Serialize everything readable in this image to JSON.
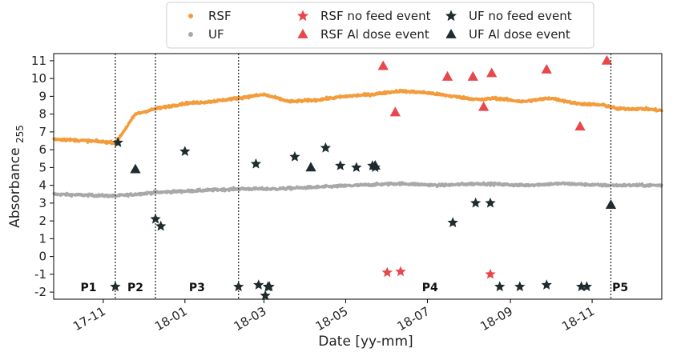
{
  "chart_data": {
    "type": "scatter",
    "xlabel": "Date [yy-mm]",
    "ylabel": "Absorbance 255",
    "ylim": [
      -2.4,
      11.4
    ],
    "y_ticks": [
      -2,
      -1,
      0,
      1,
      2,
      3,
      4,
      5,
      6,
      7,
      8,
      9,
      10,
      11
    ],
    "x_ticks": [
      "17-11",
      "18-01",
      "18-03",
      "18-05",
      "18-07",
      "18-09",
      "18-11"
    ],
    "xlim": [
      "2017-09-25",
      "2018-12-23"
    ],
    "grid": false,
    "legend": {
      "placement": "top-center",
      "entries": [
        {
          "label": "RSF",
          "marker": "dot",
          "color": "#f39c3c"
        },
        {
          "label": "UF",
          "marker": "dot",
          "color": "#a8a8a8"
        },
        {
          "label": "RSF no feed event",
          "marker": "star",
          "color": "#e8474b"
        },
        {
          "label": "RSF Al dose event",
          "marker": "triangle",
          "color": "#e8474b"
        },
        {
          "label": "UF no feed event",
          "marker": "star",
          "color": "#1f2b2e"
        },
        {
          "label": "UF Al dose event",
          "marker": "triangle",
          "color": "#1f2b2e"
        }
      ]
    },
    "phase_boundaries": [
      "2017-11-10",
      "2017-12-10",
      "2018-02-10",
      "2018-11-15"
    ],
    "phase_labels": [
      {
        "label": "P1",
        "x": "2017-10-21"
      },
      {
        "label": "P2",
        "x": "2017-11-25"
      },
      {
        "label": "P3",
        "x": "2018-01-10"
      },
      {
        "label": "P4",
        "x": "2018-07-03"
      },
      {
        "label": "P5",
        "x": "2018-11-22"
      }
    ],
    "series": [
      {
        "name": "RSF",
        "color": "#f39c3c",
        "type": "timeseries",
        "x": [
          "2017-09-25",
          "2017-10-20",
          "2017-11-10",
          "2017-11-15",
          "2017-11-25",
          "2017-12-10",
          "2018-01-01",
          "2018-01-20",
          "2018-02-10",
          "2018-03-01",
          "2018-03-20",
          "2018-04-10",
          "2018-05-01",
          "2018-05-20",
          "2018-06-10",
          "2018-07-01",
          "2018-07-20",
          "2018-08-10",
          "2018-08-20",
          "2018-09-10",
          "2018-10-01",
          "2018-10-20",
          "2018-11-10",
          "2018-11-20",
          "2018-12-10",
          "2018-12-23"
        ],
        "y": [
          6.6,
          6.5,
          6.4,
          6.9,
          8.0,
          8.3,
          8.6,
          8.7,
          8.9,
          9.1,
          8.7,
          8.8,
          9.0,
          9.1,
          9.3,
          9.2,
          9.0,
          8.8,
          8.9,
          8.7,
          8.9,
          8.6,
          8.5,
          8.3,
          8.3,
          8.2
        ]
      },
      {
        "name": "UF",
        "color": "#a8a8a8",
        "type": "timeseries",
        "x": [
          "2017-09-25",
          "2017-11-10",
          "2017-12-10",
          "2018-01-10",
          "2018-02-10",
          "2018-03-10",
          "2018-04-10",
          "2018-05-10",
          "2018-06-10",
          "2018-07-10",
          "2018-08-10",
          "2018-09-10",
          "2018-10-10",
          "2018-11-10",
          "2018-12-23"
        ],
        "y": [
          3.5,
          3.4,
          3.6,
          3.7,
          3.8,
          3.8,
          3.9,
          4.0,
          4.1,
          4.0,
          4.1,
          4.0,
          4.1,
          4.0,
          4.0
        ]
      },
      {
        "name": "RSF no feed event",
        "color": "#e8474b",
        "marker": "star",
        "x": [
          "2018-06-01",
          "2018-06-11",
          "2018-08-17"
        ],
        "y": [
          -0.9,
          -0.85,
          -1.0
        ]
      },
      {
        "name": "RSF Al dose event",
        "color": "#e8474b",
        "marker": "triangle",
        "x": [
          "2018-05-29",
          "2018-06-07",
          "2018-07-16",
          "2018-08-04",
          "2018-08-12",
          "2018-08-18",
          "2018-09-28",
          "2018-10-23",
          "2018-11-12"
        ],
        "y": [
          10.7,
          8.1,
          10.1,
          10.1,
          8.4,
          10.3,
          10.5,
          7.3,
          11.0
        ]
      },
      {
        "name": "UF no feed event",
        "color": "#1f2b2e",
        "marker": "star",
        "x": [
          "2017-11-10",
          "2017-11-12",
          "2017-12-10",
          "2017-12-14",
          "2018-01-01",
          "2018-02-10",
          "2018-02-23",
          "2018-02-25",
          "2018-03-02",
          "2018-03-04",
          "2018-03-05",
          "2018-03-24",
          "2018-04-16",
          "2018-04-27",
          "2018-05-09",
          "2018-05-21",
          "2018-05-23",
          "2018-07-20",
          "2018-08-06",
          "2018-08-17",
          "2018-08-24",
          "2018-09-08",
          "2018-09-28",
          "2018-10-24",
          "2018-10-28"
        ],
        "y": [
          -1.7,
          6.4,
          2.1,
          1.7,
          5.9,
          -1.7,
          5.2,
          -1.6,
          -2.2,
          -1.7,
          -1.7,
          5.6,
          6.1,
          5.1,
          5.0,
          5.1,
          5.0,
          1.9,
          3.0,
          3.0,
          -1.7,
          -1.7,
          -1.6,
          -1.7,
          -1.7
        ]
      },
      {
        "name": "UF Al dose event",
        "color": "#1f2b2e",
        "marker": "triangle",
        "x": [
          "2017-11-25",
          "2018-04-05",
          "2018-05-23",
          "2018-11-15"
        ],
        "y": [
          4.9,
          5.0,
          5.1,
          2.9
        ]
      }
    ]
  }
}
